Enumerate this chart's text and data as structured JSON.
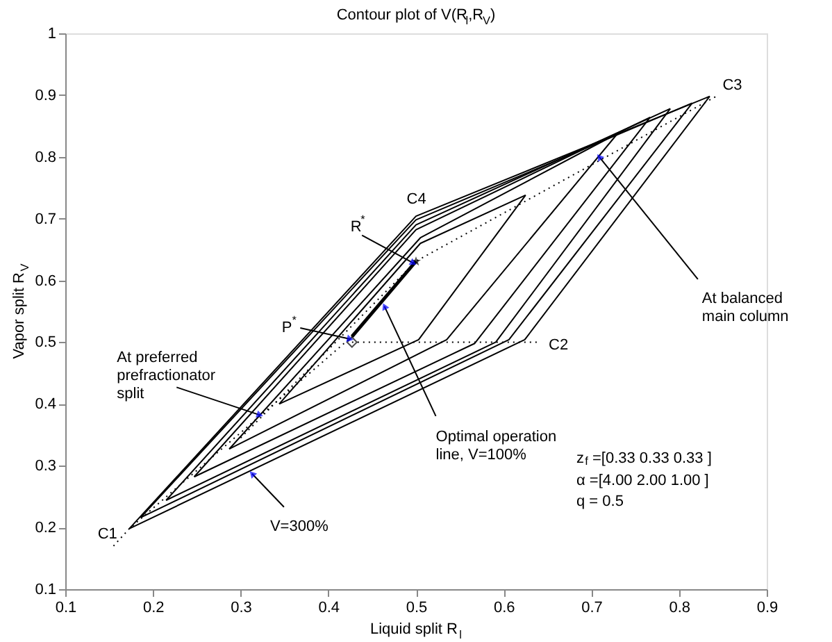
{
  "chart_data": {
    "type": "line",
    "title": "Contour plot of V(R$_{l}$,R$_{V}$)",
    "xlabel": "Liquid split R$_{l}$",
    "ylabel": "Vapor split R$_{V}$",
    "xlim": [
      0.1,
      0.9
    ],
    "ylim": [
      0.1,
      1
    ],
    "xticks": [
      0.1,
      0.2,
      0.3,
      0.4,
      0.5,
      0.6,
      0.7,
      0.8,
      0.9
    ],
    "yticks": [
      0.1,
      0.2,
      0.3,
      0.4,
      0.5,
      0.6,
      0.7,
      0.8,
      0.9,
      1
    ],
    "series": [
      {
        "color": "#000000",
        "x": [
          0.173,
          0.624,
          0.835
        ],
        "values": [
          0.198,
          0.504,
          0.898
        ]
      },
      {
        "color": "#000000",
        "x": [
          0.173,
          0.5,
          0.835
        ],
        "values": [
          0.198,
          0.704,
          0.898
        ]
      },
      {
        "color": "#000000",
        "x": [
          0.186,
          0.606,
          0.815
        ],
        "values": [
          0.216,
          0.504,
          0.887
        ]
      },
      {
        "color": "#000000",
        "x": [
          0.186,
          0.5,
          0.815
        ],
        "values": [
          0.216,
          0.698,
          0.887
        ]
      },
      {
        "color": "#000000",
        "x": [
          0.215,
          0.591,
          0.79
        ],
        "values": [
          0.244,
          0.5,
          0.878
        ]
      },
      {
        "color": "#000000",
        "x": [
          0.215,
          0.5,
          0.79
        ],
        "values": [
          0.244,
          0.69,
          0.878
        ]
      },
      {
        "color": "#000000",
        "x": [
          0.247,
          0.567,
          0.767
        ],
        "values": [
          0.282,
          0.498,
          0.864
        ]
      },
      {
        "color": "#000000",
        "x": [
          0.247,
          0.5,
          0.767
        ],
        "values": [
          0.282,
          0.682,
          0.864
        ]
      },
      {
        "color": "#000000",
        "x": [
          0.287,
          0.535,
          0.73
        ],
        "values": [
          0.327,
          0.504,
          0.838
        ]
      },
      {
        "color": "#000000",
        "x": [
          0.287,
          0.505,
          0.73
        ],
        "values": [
          0.327,
          0.669,
          0.838
        ]
      },
      {
        "color": "#000000",
        "x": [
          0.344,
          0.503,
          0.625
        ],
        "values": [
          0.4,
          0.504,
          0.738
        ]
      },
      {
        "color": "#000000",
        "x": [
          0.344,
          0.505,
          0.625
        ],
        "values": [
          0.4,
          0.66,
          0.738
        ]
      },
      {
        "color": "#000000",
        "line_style": "dotted",
        "x": [
          0.155,
          0.173,
          0.427
        ],
        "values": [
          0.17,
          0.198,
          0.509
        ]
      },
      {
        "color": "#000000",
        "line_style": "dotted",
        "x": [
          0.427,
          0.64
        ],
        "values": [
          0.5,
          0.5
        ]
      },
      {
        "color": "#000000",
        "line_style": "dotted",
        "x": [
          0.3,
          0.5,
          0.845
        ],
        "values": [
          0.345,
          0.631,
          0.9
        ]
      },
      {
        "color": "#000000",
        "x": [
          0.427,
          0.5
        ],
        "values": [
          0.509,
          0.631
        ]
      },
      {
        "type": "scatter",
        "marker": "diamond",
        "color": "#000000",
        "x": [
          0.427
        ],
        "values": [
          0.5
        ]
      },
      {
        "type": "scatter",
        "marker": "star",
        "color": "#000000",
        "x": [
          0.5
        ],
        "values": [
          0.631
        ]
      }
    ],
    "annotations": [
      {
        "text": "C1",
        "x": 0.173,
        "y": 0.198
      },
      {
        "text": "C2",
        "x": 0.624,
        "y": 0.504
      },
      {
        "text": "C3",
        "x": 0.835,
        "y": 0.898
      },
      {
        "text": "C4",
        "x": 0.5,
        "y": 0.704
      },
      {
        "text": "R$^{*}$",
        "x": 0.497,
        "y": 0.628
      },
      {
        "text": "P$^{*}$",
        "x": 0.425,
        "y": 0.505
      },
      {
        "text": "At balanced\nmain column",
        "x": 0.709,
        "y": 0.8
      },
      {
        "text": "At preferred\nprefractionator\nsplit",
        "x": 0.322,
        "y": 0.382
      },
      {
        "text": "Optimal operation\nline, V=100%",
        "x": 0.464,
        "y": 0.558
      },
      {
        "text": "V=300%",
        "x": 0.313,
        "y": 0.287
      },
      "z$_{f}$ =[0.33 0.33 0.33 ]",
      "α =[4.00 2.00 1.00 ]",
      "q = 0.5"
    ]
  }
}
